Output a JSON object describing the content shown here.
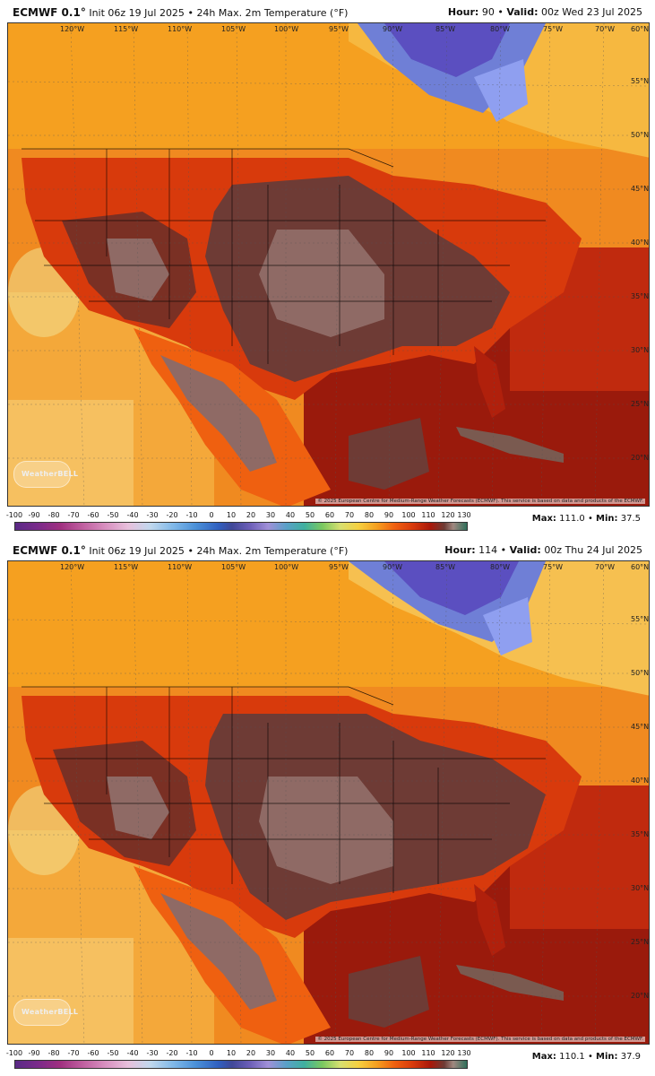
{
  "colorbar": {
    "ticks": [
      "-100",
      "-90",
      "-80",
      "-70",
      "-60",
      "-50",
      "-40",
      "-30",
      "-20",
      "-10",
      "0",
      "10",
      "20",
      "30",
      "40",
      "50",
      "60",
      "70",
      "80",
      "90",
      "100",
      "110",
      "120",
      "130"
    ]
  },
  "lon_labels": [
    "120°W",
    "115°W",
    "110°W",
    "105°W",
    "100°W",
    "95°W",
    "90°W",
    "85°W",
    "80°W",
    "75°W",
    "70°W",
    "60°N"
  ],
  "lat_labels": [
    "55°N",
    "50°N",
    "45°N",
    "40°N",
    "35°N",
    "30°N",
    "25°N",
    "20°N"
  ],
  "copyright": "© 2025 European Centre for Medium-Range Weather Forecasts (ECMWF). This service is based on data and products of the ECMWF.",
  "logo_text": "WeatherBELL",
  "palette": {
    "cold": "#7a5ec8",
    "cool": "#f6e08a",
    "mild": "#f5a020",
    "warm": "#ef6010",
    "hot": "#d83a0c",
    "veryhot": "#a8180a",
    "extreme": "#6e3b35",
    "extreme_light": "#8f6a65",
    "ocean_warm": "#f4a83a"
  },
  "panels": [
    {
      "model": "ECMWF 0.1",
      "degree_mark": "°",
      "init_text": "Init 06z 19 Jul 2025",
      "separator": "•",
      "field": "24h Max. 2m Temperature (°F)",
      "hour_label": "Hour:",
      "hour": "90",
      "valid_label": "Valid:",
      "valid": "00z Wed 23 Jul 2025",
      "max_label": "Max:",
      "max": "111.0",
      "min_label": "Min:",
      "min": "37.5"
    },
    {
      "model": "ECMWF 0.1",
      "degree_mark": "°",
      "init_text": "Init 06z 19 Jul 2025",
      "separator": "•",
      "field": "24h Max. 2m Temperature (°F)",
      "hour_label": "Hour:",
      "hour": "114",
      "valid_label": "Valid:",
      "valid": "00z Thu 24 Jul 2025",
      "max_label": "Max:",
      "max": "110.1",
      "min_label": "Min:",
      "min": "37.9"
    }
  ]
}
